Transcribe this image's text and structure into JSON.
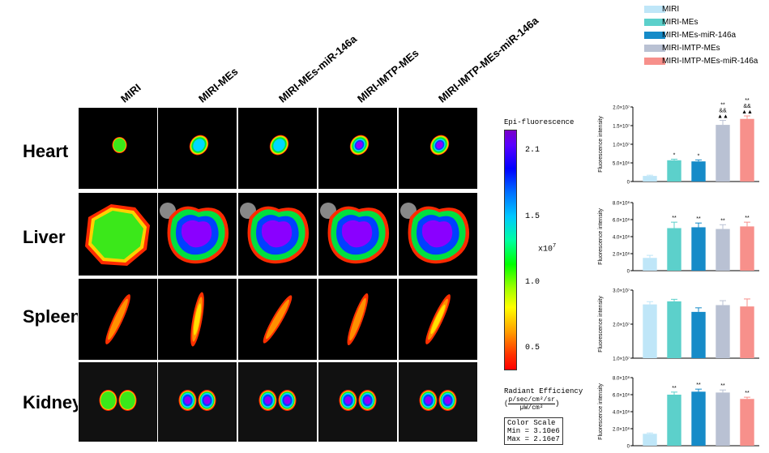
{
  "columns": [
    "MIRI",
    "MIRI-MEs",
    "MIRI-MEs-miR-146a",
    "MIRI-IMTP-MEs",
    "MIRI-IMTP-MEs-miR-146a"
  ],
  "rows": [
    "Heart",
    "Liver",
    "Spleen",
    "Kidney"
  ],
  "colorbar": {
    "title": "Epi-fluorescence",
    "ticks": [
      "2.1",
      "1.5",
      "1.0",
      "0.5"
    ],
    "unit_base": "x10",
    "unit_exp": "7",
    "radiant_label": "Radiant Efficiency",
    "radiant_num": "p/sec/cm²/sr",
    "radiant_den": "µW/cm²",
    "scale_title": "Color Scale",
    "scale_min": "Min = 3.10e6",
    "scale_max": "Max = 2.16e7"
  },
  "legend": [
    {
      "label": "MIRI",
      "color": "#bfe6f8"
    },
    {
      "label": "MIRI-MEs",
      "color": "#5cd0cb"
    },
    {
      "label": "MIRI-MEs-miR-146a",
      "color": "#168bc8"
    },
    {
      "label": "MIRI-IMTP-MEs",
      "color": "#b9c1d3"
    },
    {
      "label": "MIRI-IMTP-MEs-miR-146a",
      "color": "#f7908b"
    }
  ],
  "chart_data": [
    {
      "type": "bar",
      "title": "Heart",
      "ylabel": "Fluorescence intensity",
      "categories": [
        "MIRI",
        "MIRI-MEs",
        "MIRI-MEs-miR-146a",
        "MIRI-IMTP-MEs",
        "MIRI-IMTP-MEs-miR-146a"
      ],
      "values": [
        0.15,
        0.57,
        0.54,
        1.52,
        1.68
      ],
      "errors": [
        0.02,
        0.03,
        0.04,
        0.12,
        0.08
      ],
      "significance": [
        "",
        "*",
        "*",
        "**\n&&\n▲▲",
        "**\n&&\n▲▲"
      ],
      "ylim": [
        0,
        2.0
      ],
      "yticks": [
        0,
        0.5,
        1.0,
        1.5,
        2.0
      ],
      "ytick_labels": [
        "0",
        "5.0×10⁶",
        "1.0×10⁷",
        "1.5×10⁷",
        "2.0×10⁷"
      ]
    },
    {
      "type": "bar",
      "title": "Liver",
      "ylabel": "Fluorescence intensity",
      "categories": [
        "MIRI",
        "MIRI-MEs",
        "MIRI-MEs-miR-146a",
        "MIRI-IMTP-MEs",
        "MIRI-IMTP-MEs-miR-146a"
      ],
      "values": [
        1.5,
        5.0,
        5.1,
        4.9,
        5.2
      ],
      "errors": [
        0.3,
        0.7,
        0.5,
        0.5,
        0.5
      ],
      "significance": [
        "",
        "**",
        "**",
        "**",
        "**"
      ],
      "ylim": [
        0,
        8.0
      ],
      "yticks": [
        0,
        2,
        4,
        6,
        8
      ],
      "ytick_labels": [
        "0",
        "2.0×10⁸",
        "4.0×10⁸",
        "6.0×10⁸",
        "8.0×10⁸"
      ]
    },
    {
      "type": "bar",
      "title": "Spleen",
      "ylabel": "Fluorescence intensity",
      "categories": [
        "MIRI",
        "MIRI-MEs",
        "MIRI-MEs-miR-146a",
        "MIRI-IMTP-MEs",
        "MIRI-IMTP-MEs-miR-146a"
      ],
      "values": [
        2.58,
        2.67,
        2.36,
        2.56,
        2.52
      ],
      "errors": [
        0.08,
        0.06,
        0.12,
        0.13,
        0.22
      ],
      "significance": [
        "",
        "",
        "",
        "",
        ""
      ],
      "ylim": [
        1.0,
        3.0
      ],
      "yticks": [
        1.0,
        2.0,
        3.0
      ],
      "ytick_labels": [
        "1.0×10⁷",
        "2.0×10⁷",
        "3.0×10⁷"
      ]
    },
    {
      "type": "bar",
      "title": "Kidney",
      "ylabel": "Fluorescence intensity",
      "categories": [
        "MIRI",
        "MIRI-MEs",
        "MIRI-MEs-miR-146a",
        "MIRI-IMTP-MEs",
        "MIRI-IMTP-MEs-miR-146a"
      ],
      "values": [
        1.4,
        6.0,
        6.35,
        6.25,
        5.5
      ],
      "errors": [
        0.1,
        0.3,
        0.3,
        0.3,
        0.2
      ],
      "significance": [
        "",
        "**",
        "**",
        "**",
        "**"
      ],
      "ylim": [
        0,
        8.0
      ],
      "yticks": [
        0,
        2,
        4,
        6,
        8
      ],
      "ytick_labels": [
        "0",
        "2.0×10⁸",
        "4.0×10⁸",
        "6.0×10⁸",
        "8.0×10⁸"
      ]
    }
  ]
}
